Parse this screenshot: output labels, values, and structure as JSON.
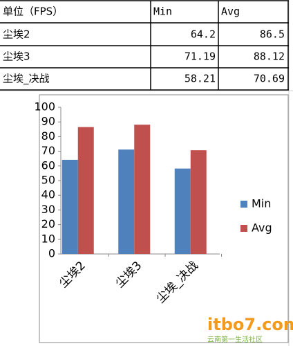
{
  "table": {
    "corner": "单位（FPS）"
  },
  "chart_data": {
    "type": "bar",
    "categories": [
      "尘埃2",
      "尘埃3",
      "尘埃_决战"
    ],
    "series": [
      {
        "name": "Min",
        "color": "#4f81bd",
        "values": [
          64.2,
          71.19,
          58.21
        ]
      },
      {
        "name": "Avg",
        "color": "#c0504d",
        "values": [
          86.5,
          88.12,
          70.69
        ]
      }
    ],
    "ylim": [
      0,
      100
    ],
    "yticks": [
      0,
      10,
      20,
      30,
      40,
      50,
      60,
      70,
      80,
      90,
      100
    ],
    "grid": false,
    "legend": "right"
  },
  "watermark": {
    "logo": "itbo7.com",
    "slogan": "云南第一生活社区"
  }
}
